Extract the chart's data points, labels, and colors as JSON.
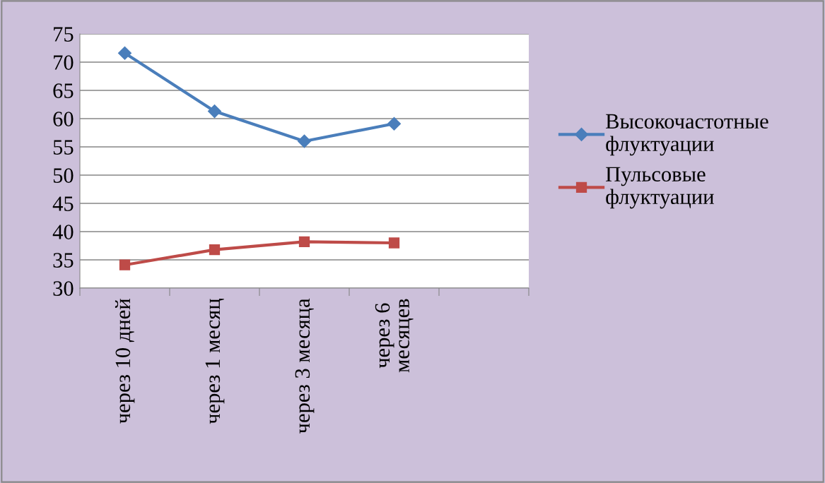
{
  "chart_data": {
    "type": "line",
    "categories": [
      "через 10 дней",
      "через 1 месяц",
      "через 3 месяца",
      "через 6 месяцев",
      null
    ],
    "series": [
      {
        "name": "Высокочастотные флуктуации",
        "color": "#4a7ebb",
        "marker": "diamond",
        "values": [
          71.6,
          61.3,
          56,
          59.1,
          null
        ]
      },
      {
        "name": "Пульсовые флуктуации",
        "color": "#be4b48",
        "marker": "square",
        "values": [
          34.1,
          36.8,
          38.2,
          38,
          null
        ]
      }
    ],
    "ylim": [
      30,
      75
    ],
    "yticks": [
      30,
      35,
      40,
      45,
      50,
      55,
      60,
      65,
      70,
      75
    ],
    "grid": "y",
    "legend": "right",
    "line_style": "solid"
  }
}
